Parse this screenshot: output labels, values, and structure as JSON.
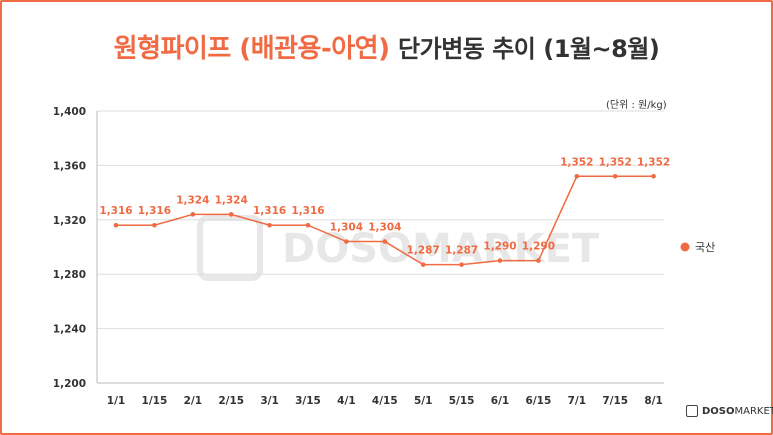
{
  "header": {
    "title_main": "원형파이프 (배관용-아연)",
    "title_sub": "단가변동 추이 (1월~8월)"
  },
  "unit_label": "(단위 : 원/kg)",
  "brand": {
    "name_bold": "DOSO",
    "name_thin": "MARKET",
    "watermark": "DOSOMARKET"
  },
  "colors": {
    "accent": "#f06a43",
    "grid": "#dddddd",
    "axis_text": "#333333"
  },
  "chart_data": {
    "type": "line",
    "title": "원형파이프 (배관용-아연) 단가변동 추이 (1월~8월)",
    "categories": [
      "1/1",
      "1/15",
      "2/1",
      "2/15",
      "3/1",
      "3/15",
      "4/1",
      "4/15",
      "5/1",
      "5/15",
      "6/1",
      "6/15",
      "7/1",
      "7/15",
      "8/1"
    ],
    "series": [
      {
        "name": "국산",
        "values": [
          1316,
          1316,
          1324,
          1324,
          1316,
          1316,
          1304,
          1304,
          1287,
          1287,
          1290,
          1290,
          1352,
          1352,
          1352
        ]
      }
    ],
    "data_labels": [
      "1,316",
      "1,316",
      "1,324",
      "1,324",
      "1,316",
      "1,316",
      "1,304",
      "1,304",
      "1,287",
      "1,287",
      "1,290",
      "1,290",
      "1,352",
      "1,352",
      "1,352"
    ],
    "yticks": [
      1200,
      1240,
      1280,
      1320,
      1360,
      1400
    ],
    "ytick_labels": [
      "1,200",
      "1,240",
      "1,280",
      "1,320",
      "1,360",
      "1,400"
    ],
    "ylim": [
      1200,
      1400
    ],
    "grid": true,
    "legend_position": "right"
  }
}
